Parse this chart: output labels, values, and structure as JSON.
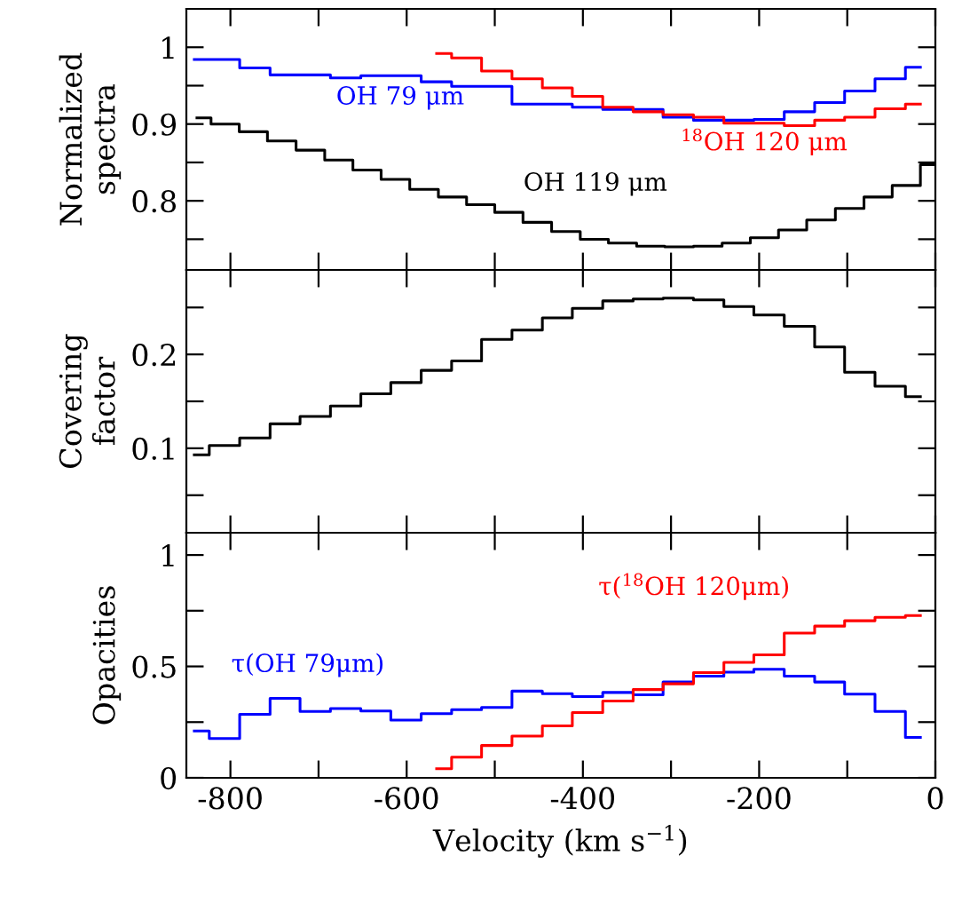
{
  "chart_data": [
    {
      "type": "step",
      "ylabel": "Normalized\nspectra",
      "line_style": "solid",
      "marker": "none",
      "grid": false,
      "legend": false,
      "tick_labels": "y",
      "x": [
        -841,
        -807,
        -772,
        -738,
        -704,
        -669,
        -635,
        -601,
        -566,
        -532,
        -498,
        -463,
        -429,
        -395,
        -360,
        -326,
        -292,
        -257,
        -223,
        -189,
        -154,
        -120,
        -86,
        -51,
        -17
      ],
      "xlim": [
        -850,
        0
      ],
      "xticks": [
        {
          "value": -800,
          "label": null
        },
        {
          "value": -700,
          "label": null
        },
        {
          "value": -600,
          "label": null
        },
        {
          "value": -500,
          "label": null
        },
        {
          "value": -400,
          "label": null
        },
        {
          "value": -300,
          "label": null
        },
        {
          "value": -200,
          "label": null
        },
        {
          "value": -100,
          "label": null
        },
        {
          "value": 0,
          "label": null
        }
      ],
      "ylim": [
        0.71,
        1.05
      ],
      "yticks": [
        {
          "value": 0.75,
          "label": null
        },
        0.8,
        {
          "value": 0.85,
          "label": null
        },
        0.9,
        {
          "value": 0.95,
          "label": null
        },
        1
      ],
      "series": [
        {
          "name": "OH 79 μm",
          "color": "#0000ff",
          "values": [
            0.984,
            0.984,
            0.973,
            0.964,
            0.964,
            0.96,
            0.963,
            0.963,
            0.955,
            0.949,
            0.949,
            0.926,
            0.926,
            0.922,
            0.919,
            0.919,
            0.909,
            0.905,
            0.905,
            0.906,
            0.916,
            0.928,
            0.943,
            0.959,
            0.974
          ]
        },
        {
          "name": "$^{18}$OH 120 μm",
          "color": "#ff0000",
          "x": [
            -566,
            -532,
            -498,
            -463,
            -429,
            -395,
            -360,
            -326,
            -292,
            -257,
            -223,
            -189,
            -154,
            -120,
            -86,
            -51,
            -17
          ],
          "values": [
            0.992,
            0.986,
            0.969,
            0.959,
            0.947,
            0.936,
            0.922,
            0.916,
            0.912,
            0.909,
            0.901,
            0.901,
            0.898,
            0.905,
            0.909,
            0.92,
            0.926
          ]
        },
        {
          "name": "OH 119 μm",
          "color": "#000000",
          "x": [
            -838,
            -806,
            -774,
            -742,
            -709,
            -677,
            -645,
            -613,
            -580,
            -548,
            -516,
            -484,
            -452,
            -419,
            -387,
            -355,
            -323,
            -291,
            -258,
            -226,
            -194,
            -162,
            -130,
            -97,
            -65,
            -33,
            -1
          ],
          "values": [
            0.908,
            0.9,
            0.89,
            0.878,
            0.866,
            0.853,
            0.84,
            0.828,
            0.815,
            0.805,
            0.795,
            0.785,
            0.772,
            0.76,
            0.75,
            0.745,
            0.741,
            0.74,
            0.741,
            0.745,
            0.752,
            0.762,
            0.775,
            0.79,
            0.805,
            0.82,
            0.847
          ]
        }
      ]
    },
    {
      "type": "step",
      "ylabel": "Covering\nfactor",
      "line_style": "solid",
      "marker": "none",
      "grid": false,
      "legend": false,
      "tick_labels": "y",
      "x": [
        -841,
        -807,
        -772,
        -738,
        -704,
        -669,
        -635,
        -601,
        -566,
        -532,
        -498,
        -463,
        -429,
        -395,
        -360,
        -326,
        -292,
        -257,
        -223,
        -189,
        -154,
        -120,
        -86,
        -51,
        -17
      ],
      "xlim": [
        -850,
        0
      ],
      "xticks": [
        {
          "value": -800,
          "label": null
        },
        {
          "value": -700,
          "label": null
        },
        {
          "value": -600,
          "label": null
        },
        {
          "value": -500,
          "label": null
        },
        {
          "value": -400,
          "label": null
        },
        {
          "value": -300,
          "label": null
        },
        {
          "value": -200,
          "label": null
        },
        {
          "value": -100,
          "label": null
        },
        {
          "value": 0,
          "label": null
        }
      ],
      "ylim": [
        0.01,
        0.29
      ],
      "yticks": [
        {
          "value": 0.05,
          "label": null
        },
        0.1,
        {
          "value": 0.15,
          "label": null
        },
        0.2,
        {
          "value": 0.25,
          "label": null
        }
      ],
      "series": [
        {
          "color": "#000000",
          "values": [
            0.093,
            0.103,
            0.111,
            0.126,
            0.134,
            0.145,
            0.158,
            0.17,
            0.183,
            0.193,
            0.216,
            0.226,
            0.239,
            0.249,
            0.257,
            0.259,
            0.26,
            0.258,
            0.251,
            0.242,
            0.23,
            0.208,
            0.181,
            0.166,
            0.155
          ]
        }
      ]
    },
    {
      "type": "step",
      "ylabel": "Opacities",
      "xlabel": "Velocity (km s$^{−1}$)",
      "line_style": "solid",
      "marker": "none",
      "grid": false,
      "legend": false,
      "x": [
        -841,
        -807,
        -772,
        -738,
        -704,
        -669,
        -635,
        -601,
        -566,
        -532,
        -498,
        -463,
        -429,
        -395,
        -360,
        -326,
        -292,
        -257,
        -223,
        -189,
        -154,
        -120,
        -86,
        -51,
        -17
      ],
      "xlim": [
        -850,
        0
      ],
      "xticks": [
        -800,
        {
          "value": -700,
          "label": null
        },
        -600,
        {
          "value": -500,
          "label": null
        },
        -400,
        {
          "value": -300,
          "label": null
        },
        -200,
        {
          "value": -100,
          "label": null
        },
        0
      ],
      "ylim": [
        0,
        1.1
      ],
      "yticks": [
        0,
        {
          "value": 0.25,
          "label": null
        },
        0.5,
        {
          "value": 0.75,
          "label": null
        },
        1
      ],
      "series": [
        {
          "name": "τ(OH 79μm)",
          "color": "#0000ff",
          "values": [
            0.21,
            0.176,
            0.285,
            0.357,
            0.298,
            0.311,
            0.3,
            0.259,
            0.288,
            0.306,
            0.316,
            0.389,
            0.378,
            0.365,
            0.383,
            0.373,
            0.43,
            0.456,
            0.474,
            0.487,
            0.456,
            0.43,
            0.376,
            0.298,
            0.181
          ]
        },
        {
          "name": "τ($^{18}$OH 120μm)",
          "color": "#ff0000",
          "x": [
            -566,
            -532,
            -498,
            -463,
            -429,
            -395,
            -360,
            -326,
            -292,
            -257,
            -223,
            -189,
            -154,
            -120,
            -86,
            -51,
            -17
          ],
          "values": [
            0.041,
            0.093,
            0.145,
            0.187,
            0.233,
            0.293,
            0.345,
            0.396,
            0.422,
            0.472,
            0.518,
            0.552,
            0.65,
            0.681,
            0.705,
            0.72,
            0.728
          ]
        }
      ]
    }
  ]
}
